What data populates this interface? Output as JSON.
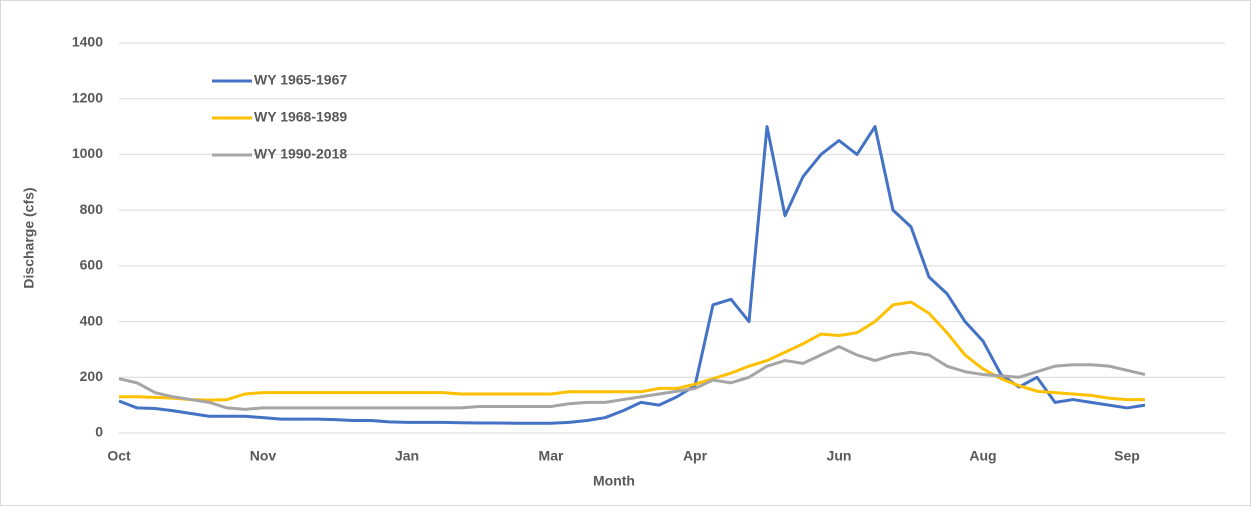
{
  "chart_data": {
    "type": "line",
    "y_label": "Discharge (cfs)",
    "x_label": "Month",
    "categories": [
      "Oct",
      null,
      null,
      null,
      null,
      null,
      null,
      null,
      "Nov",
      null,
      null,
      null,
      null,
      null,
      null,
      null,
      "Jan",
      null,
      null,
      null,
      null,
      null,
      null,
      null,
      "Mar",
      null,
      null,
      null,
      null,
      null,
      null,
      null,
      "Apr",
      null,
      null,
      null,
      null,
      null,
      null,
      null,
      "Jun",
      null,
      null,
      null,
      null,
      null,
      null,
      null,
      "Aug",
      null,
      null,
      null,
      null,
      null,
      null,
      null,
      "Sep",
      null,
      null,
      null,
      null,
      null
    ],
    "series": [
      {
        "name": "WY 1965-1967",
        "color": "#4472c4",
        "values": [
          115,
          90,
          88,
          80,
          70,
          60,
          60,
          60,
          55,
          50,
          50,
          50,
          48,
          45,
          45,
          40,
          38,
          38,
          38,
          37,
          36,
          36,
          35,
          35,
          35,
          38,
          45,
          55,
          80,
          110,
          100,
          130,
          170,
          460,
          480,
          400,
          1100,
          780,
          920,
          1000,
          1050,
          1000,
          1100,
          800,
          740,
          560,
          500,
          400,
          330,
          210,
          165,
          200,
          110,
          120,
          110,
          100,
          90,
          100,
          null,
          null,
          null,
          null
        ]
      },
      {
        "name": "WY 1968-1989",
        "color": "#ffc000",
        "values": [
          130,
          130,
          128,
          125,
          120,
          118,
          120,
          140,
          145,
          145,
          145,
          145,
          145,
          145,
          145,
          145,
          145,
          145,
          145,
          140,
          140,
          140,
          140,
          140,
          140,
          148,
          148,
          148,
          148,
          148,
          160,
          160,
          175,
          195,
          215,
          240,
          260,
          290,
          320,
          355,
          350,
          360,
          400,
          460,
          470,
          430,
          360,
          280,
          230,
          195,
          170,
          150,
          145,
          140,
          135,
          125,
          120,
          120,
          null,
          null,
          null,
          null
        ]
      },
      {
        "name": "WY 1990-2018",
        "color": "#a5a5a5",
        "values": [
          195,
          180,
          145,
          130,
          120,
          110,
          90,
          85,
          90,
          90,
          90,
          90,
          90,
          90,
          90,
          90,
          90,
          90,
          90,
          90,
          95,
          95,
          95,
          95,
          95,
          105,
          110,
          110,
          120,
          130,
          140,
          150,
          160,
          190,
          180,
          200,
          240,
          260,
          250,
          280,
          310,
          280,
          260,
          280,
          290,
          280,
          240,
          220,
          210,
          205,
          200,
          220,
          240,
          245,
          245,
          240,
          225,
          210,
          null,
          null,
          null,
          null
        ]
      }
    ],
    "ylim": [
      0,
      1400
    ],
    "yticks": [
      0,
      200,
      400,
      600,
      800,
      1000,
      1200,
      1400
    ],
    "grid": true
  }
}
